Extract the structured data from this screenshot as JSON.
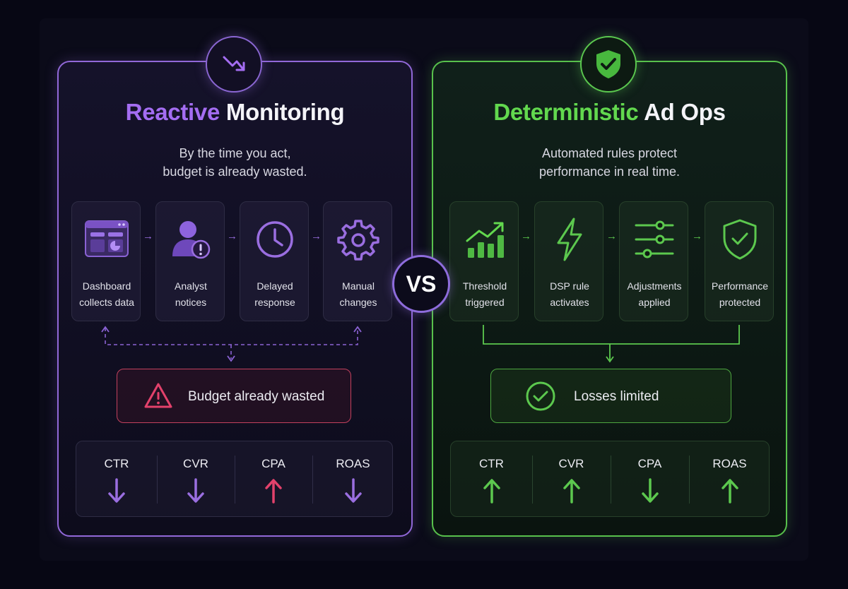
{
  "colors": {
    "purple": "#a46df2",
    "green": "#62d84e",
    "alert": "#e2416b",
    "background": "#070714"
  },
  "vs_label": "VS",
  "left": {
    "badge_icon": "trend-down-icon",
    "title_highlight": "Reactive",
    "title_rest": "Monitoring",
    "subtitle_line1": "By the time you act,",
    "subtitle_line2": "budget is already wasted.",
    "steps": [
      {
        "icon": "dashboard-icon",
        "line1": "Dashboard",
        "line2": "collects data"
      },
      {
        "icon": "analyst-alert-icon",
        "line1": "Analyst",
        "line2": "notices"
      },
      {
        "icon": "clock-icon",
        "line1": "Delayed",
        "line2": "response"
      },
      {
        "icon": "gear-icon",
        "line1": "Manual",
        "line2": "changes"
      }
    ],
    "outcome_icon": "warning-triangle-icon",
    "outcome_text": "Budget already wasted",
    "metrics": [
      {
        "label": "CTR",
        "direction": "down",
        "color": "#9a6ee0"
      },
      {
        "label": "CVR",
        "direction": "down",
        "color": "#9a6ee0"
      },
      {
        "label": "CPA",
        "direction": "up",
        "color": "#e2416b"
      },
      {
        "label": "ROAS",
        "direction": "down",
        "color": "#9a6ee0"
      }
    ]
  },
  "right": {
    "badge_icon": "shield-check-icon",
    "title_highlight": "Deterministic",
    "title_rest": "Ad Ops",
    "subtitle_line1": "Automated rules protect",
    "subtitle_line2": "performance in real time.",
    "steps": [
      {
        "icon": "bar-chart-trend-icon",
        "line1": "Threshold",
        "line2": "triggered"
      },
      {
        "icon": "lightning-icon",
        "line1": "DSP rule",
        "line2": "activates"
      },
      {
        "icon": "sliders-icon",
        "line1": "Adjustments",
        "line2": "applied"
      },
      {
        "icon": "shield-check-icon",
        "line1": "Performance",
        "line2": "protected"
      }
    ],
    "outcome_icon": "check-circle-icon",
    "outcome_text": "Losses limited",
    "metrics": [
      {
        "label": "CTR",
        "direction": "up",
        "color": "#5cc84e"
      },
      {
        "label": "CVR",
        "direction": "up",
        "color": "#5cc84e"
      },
      {
        "label": "CPA",
        "direction": "down",
        "color": "#5cc84e"
      },
      {
        "label": "ROAS",
        "direction": "up",
        "color": "#5cc84e"
      }
    ]
  }
}
